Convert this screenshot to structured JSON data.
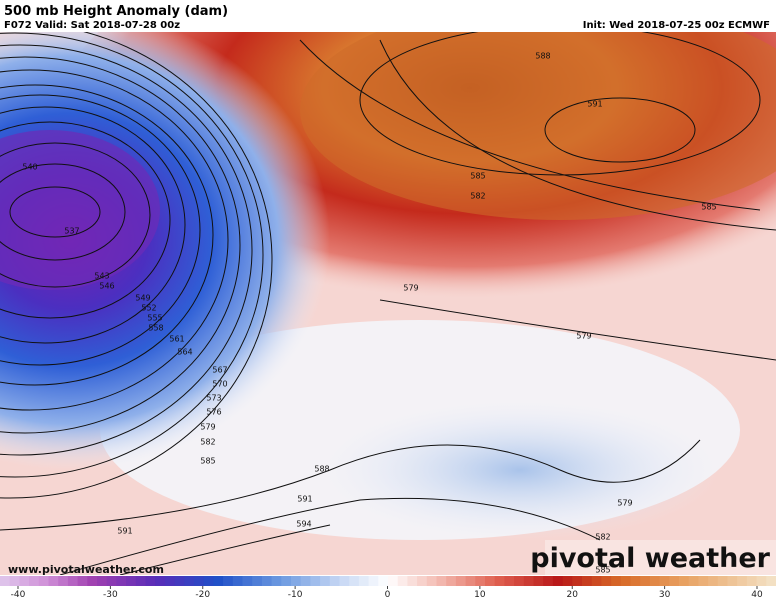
{
  "header": {
    "title": "500 mb Height Anomaly (dam)",
    "valid": "F072 Valid: Sat 2018-07-28 00z",
    "init": "Init: Wed 2018-07-25 00z ECMWF"
  },
  "map": {
    "contour_labels": [
      540,
      537,
      543,
      546,
      549,
      552,
      555,
      558,
      561,
      564,
      567,
      570,
      573,
      576,
      579,
      582,
      585,
      588,
      591,
      594,
      591,
      588,
      591,
      585,
      582,
      585,
      579,
      579,
      579,
      582,
      585
    ]
  },
  "footer": {
    "url": "www.pivotalweather.com",
    "watermark": "pivotal weather"
  },
  "colorbar": {
    "lim": [
      -40,
      40
    ],
    "ticks": [
      -40,
      -30,
      -20,
      -10,
      0,
      10,
      20,
      30,
      40
    ]
  }
}
